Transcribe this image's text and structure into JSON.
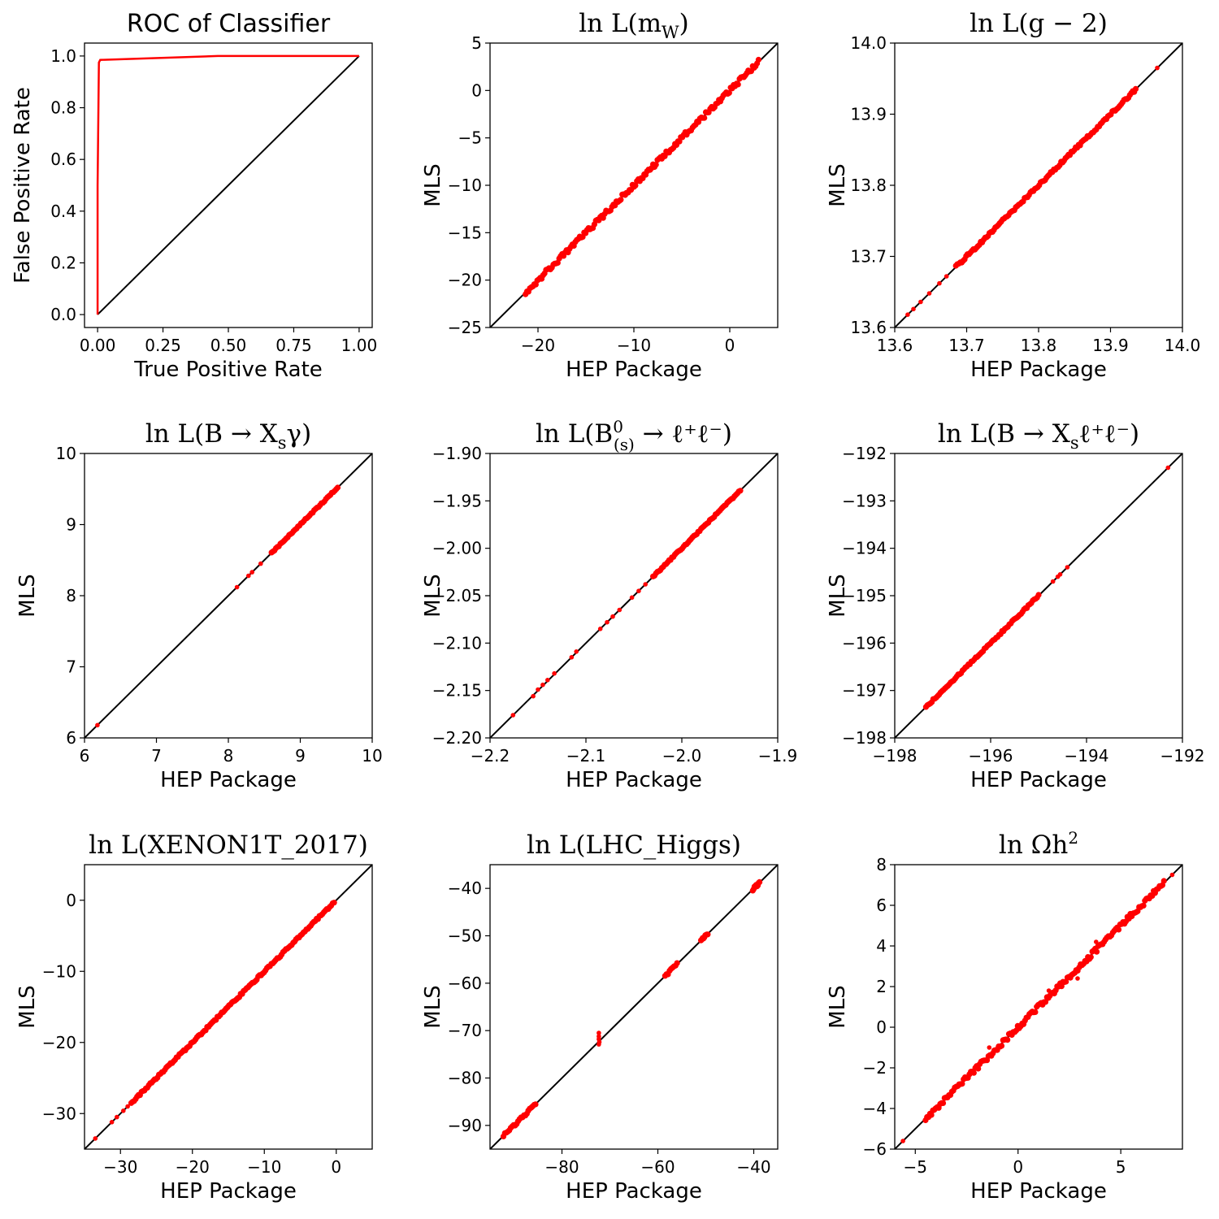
{
  "colors": {
    "series": "#ff0000",
    "diagonal": "#000000",
    "axis": "#000000",
    "background": "#ffffff"
  },
  "chart_data": [
    {
      "id": "roc",
      "type": "line",
      "title": "ROC of Classifier",
      "title_style": "sans",
      "xlabel": "True Positive Rate",
      "ylabel": "False Positive Rate",
      "xlim": [
        -0.05,
        1.05
      ],
      "ylim": [
        -0.05,
        1.05
      ],
      "xticks": [
        0.0,
        0.25,
        0.5,
        0.75,
        1.0
      ],
      "xtick_labels": [
        "0.00",
        "0.25",
        "0.50",
        "0.75",
        "1.00"
      ],
      "yticks": [
        0.0,
        0.2,
        0.4,
        0.6,
        0.8,
        1.0
      ],
      "ytick_labels": [
        "0.0",
        "0.2",
        "0.4",
        "0.6",
        "0.8",
        "1.0"
      ],
      "diagonal": [
        [
          0,
          0
        ],
        [
          1,
          1
        ]
      ],
      "series": [
        {
          "name": "ROC curve",
          "x": [
            0.0,
            0.0,
            0.005,
            0.01,
            0.46,
            1.0
          ],
          "y": [
            0.0,
            0.5,
            0.975,
            0.985,
            1.0,
            1.0
          ]
        }
      ]
    },
    {
      "id": "mw",
      "type": "scatter",
      "title": "ln L(m",
      "title_sub": "W",
      "title_tail": ")",
      "title_style": "math",
      "xlabel": "HEP Package",
      "ylabel": "MLS",
      "xlim": [
        -25,
        5
      ],
      "ylim": [
        -25,
        5
      ],
      "xticks": [
        -20,
        -10,
        0
      ],
      "xtick_labels": [
        "−20",
        "−10",
        "0"
      ],
      "yticks": [
        -25,
        -20,
        -15,
        -10,
        -5,
        0,
        5
      ],
      "ytick_labels": [
        "−25",
        "−20",
        "−15",
        "−10",
        "−5",
        "0",
        "5"
      ],
      "diagonal": [
        [
          -25,
          -25
        ],
        [
          5,
          5
        ]
      ],
      "scatter_segments": [
        [
          -21.3,
          3.0
        ]
      ],
      "outliers": [],
      "scatter_spread": 0.25
    },
    {
      "id": "g2",
      "type": "scatter",
      "title": "ln L(g − 2)",
      "title_style": "math",
      "xlabel": "HEP Package",
      "ylabel": "MLS",
      "xlim": [
        13.6,
        14.0
      ],
      "ylim": [
        13.6,
        14.0
      ],
      "xticks": [
        13.6,
        13.7,
        13.8,
        13.9,
        14.0
      ],
      "xtick_labels": [
        "13.6",
        "13.7",
        "13.8",
        "13.9",
        "14.0"
      ],
      "yticks": [
        13.6,
        13.7,
        13.8,
        13.9,
        14.0
      ],
      "ytick_labels": [
        "13.6",
        "13.7",
        "13.8",
        "13.9",
        "14.0"
      ],
      "diagonal": [
        [
          13.6,
          13.6
        ],
        [
          14.0,
          14.0
        ]
      ],
      "scatter_segments": [
        [
          13.685,
          13.935
        ]
      ],
      "outliers": [
        [
          13.618,
          13.618
        ],
        [
          13.626,
          13.626
        ],
        [
          13.636,
          13.636
        ],
        [
          13.648,
          13.648
        ],
        [
          13.662,
          13.662
        ],
        [
          13.672,
          13.672
        ],
        [
          13.965,
          13.965
        ]
      ],
      "scatter_spread": 0.002
    },
    {
      "id": "bxsgamma",
      "type": "scatter",
      "title": "ln L(B → X",
      "title_sub": "s",
      "title_tail": "γ)",
      "title_style": "math",
      "xlabel": "HEP Package",
      "ylabel": "MLS",
      "xlim": [
        6,
        10
      ],
      "ylim": [
        6,
        10
      ],
      "xticks": [
        6,
        7,
        8,
        9,
        10
      ],
      "xtick_labels": [
        "6",
        "7",
        "8",
        "9",
        "10"
      ],
      "yticks": [
        6,
        7,
        8,
        9,
        10
      ],
      "ytick_labels": [
        "6",
        "7",
        "8",
        "9",
        "10"
      ],
      "diagonal": [
        [
          6,
          6
        ],
        [
          10,
          10
        ]
      ],
      "scatter_segments": [
        [
          8.6,
          9.52
        ]
      ],
      "outliers": [
        [
          6.18,
          6.18
        ],
        [
          8.12,
          8.12
        ],
        [
          8.28,
          8.28
        ],
        [
          8.33,
          8.33
        ],
        [
          8.45,
          8.45
        ]
      ],
      "scatter_spread": 0.01
    },
    {
      "id": "bsmumu",
      "type": "scatter",
      "title": "ln L(B",
      "title_sup": "0",
      "title_sub": "(s)",
      "title_tail": " → ℓ⁺ℓ⁻)",
      "title_style": "math",
      "xlabel": "HEP Package",
      "ylabel": "MLS",
      "xlim": [
        -2.2,
        -1.9
      ],
      "ylim": [
        -2.2,
        -1.9
      ],
      "xticks": [
        -2.2,
        -2.1,
        -2.0,
        -1.9
      ],
      "xtick_labels": [
        "−2.2",
        "−2.1",
        "−2.0",
        "−1.9"
      ],
      "yticks": [
        -2.2,
        -2.15,
        -2.1,
        -2.05,
        -2.0,
        -1.95,
        -1.9
      ],
      "ytick_labels": [
        "−2.20",
        "−2.15",
        "−2.10",
        "−2.05",
        "−2.00",
        "−1.95",
        "−1.90"
      ],
      "diagonal": [
        [
          -2.2,
          -2.2
        ],
        [
          -1.9,
          -1.9
        ]
      ],
      "scatter_segments": [
        [
          -2.03,
          -1.939
        ]
      ],
      "outliers": [
        [
          -2.176,
          -2.176
        ],
        [
          -2.155,
          -2.156
        ],
        [
          -2.15,
          -2.149
        ],
        [
          -2.145,
          -2.144
        ],
        [
          -2.14,
          -2.139
        ],
        [
          -2.133,
          -2.132
        ],
        [
          -2.115,
          -2.115
        ],
        [
          -2.11,
          -2.109
        ],
        [
          -2.085,
          -2.085
        ],
        [
          -2.078,
          -2.078
        ],
        [
          -2.072,
          -2.072
        ],
        [
          -2.065,
          -2.065
        ],
        [
          -2.052,
          -2.052
        ],
        [
          -2.045,
          -2.045
        ],
        [
          -2.038,
          -2.038
        ]
      ],
      "scatter_spread": 0.0008
    },
    {
      "id": "bxsll",
      "type": "scatter",
      "title": "ln L(B → X",
      "title_sub": "s",
      "title_tail": "ℓ⁺ℓ⁻)",
      "title_style": "math",
      "xlabel": "HEP Package",
      "ylabel": "MLS",
      "xlim": [
        -198,
        -192
      ],
      "ylim": [
        -198,
        -192
      ],
      "xticks": [
        -198,
        -196,
        -194,
        -192
      ],
      "xtick_labels": [
        "−198",
        "−196",
        "−194",
        "−192"
      ],
      "yticks": [
        -198,
        -197,
        -196,
        -195,
        -194,
        -193,
        -192
      ],
      "ytick_labels": [
        "−198",
        "−197",
        "−196",
        "−195",
        "−194",
        "−193",
        "−192"
      ],
      "diagonal": [
        [
          -198,
          -198
        ],
        [
          -192,
          -192
        ]
      ],
      "scatter_segments": [
        [
          -197.35,
          -195.0
        ]
      ],
      "outliers": [
        [
          -194.7,
          -194.7
        ],
        [
          -194.6,
          -194.6
        ],
        [
          -194.55,
          -194.55
        ],
        [
          -194.4,
          -194.4
        ],
        [
          -192.3,
          -192.3
        ]
      ],
      "scatter_spread": 0.02
    },
    {
      "id": "xenon",
      "type": "scatter",
      "title": "ln L(XENON1T_2017)",
      "title_style": "math",
      "xlabel": "HEP Package",
      "ylabel": "MLS",
      "xlim": [
        -35,
        5
      ],
      "ylim": [
        -35,
        5
      ],
      "xticks": [
        -30,
        -20,
        -10,
        0
      ],
      "xtick_labels": [
        "−30",
        "−20",
        "−10",
        "0"
      ],
      "yticks": [
        -30,
        -20,
        -10,
        0
      ],
      "ytick_labels": [
        "−30",
        "−20",
        "−10",
        "0"
      ],
      "diagonal": [
        [
          -35,
          -35
        ],
        [
          5,
          5
        ]
      ],
      "scatter_segments": [
        [
          -28.5,
          -0.3
        ]
      ],
      "outliers": [
        [
          -33.5,
          -33.5
        ],
        [
          -31.2,
          -31.2
        ],
        [
          -30.5,
          -30.5
        ],
        [
          -29.6,
          -29.6
        ],
        [
          -29.0,
          -29.0
        ]
      ],
      "scatter_spread": 0.15
    },
    {
      "id": "lhc",
      "type": "scatter",
      "title": "ln L(LHC_Higgs)",
      "title_style": "math",
      "xlabel": "HEP Package",
      "ylabel": "MLS",
      "xlim": [
        -95,
        -35
      ],
      "ylim": [
        -95,
        -35
      ],
      "xticks": [
        -80,
        -60,
        -40
      ],
      "xtick_labels": [
        "−80",
        "−60",
        "−40"
      ],
      "yticks": [
        -90,
        -80,
        -70,
        -60,
        -50,
        -40
      ],
      "ytick_labels": [
        "−90",
        "−80",
        "−70",
        "−60",
        "−50",
        "−40"
      ],
      "diagonal": [
        [
          -95,
          -95
        ],
        [
          -35,
          -35
        ]
      ],
      "scatter_segments": [
        [
          -92.2,
          -85.5
        ],
        [
          -58.5,
          -56.0
        ],
        [
          -51.0,
          -49.6
        ],
        [
          -40.2,
          -38.8
        ]
      ],
      "outliers": [
        [
          -72.3,
          -70.5
        ],
        [
          -72.3,
          -71.2
        ],
        [
          -72.3,
          -71.8
        ],
        [
          -72.2,
          -72.4
        ],
        [
          -72.3,
          -72.9
        ]
      ],
      "scatter_spread": 0.3
    },
    {
      "id": "omega",
      "type": "scatter",
      "title": "ln Ωh",
      "title_sup": "2",
      "title_style": "math",
      "xlabel": "HEP Package",
      "ylabel": "MLS",
      "xlim": [
        -6,
        8
      ],
      "ylim": [
        -6,
        8
      ],
      "xticks": [
        -5,
        0,
        5
      ],
      "xtick_labels": [
        "−5",
        "0",
        "5"
      ],
      "yticks": [
        -6,
        -4,
        -2,
        0,
        2,
        4,
        6,
        8
      ],
      "ytick_labels": [
        "−6",
        "−4",
        "−2",
        "0",
        "2",
        "4",
        "6",
        "8"
      ],
      "diagonal": [
        [
          -6,
          -6
        ],
        [
          8,
          8
        ]
      ],
      "scatter_segments": [
        [
          -4.5,
          7.1
        ]
      ],
      "outliers": [
        [
          -5.6,
          -5.6
        ],
        [
          7.5,
          7.5
        ],
        [
          -1.4,
          -1.0
        ],
        [
          2.9,
          2.4
        ],
        [
          1.5,
          1.8
        ],
        [
          3.8,
          4.2
        ]
      ],
      "scatter_spread": 0.12
    }
  ]
}
